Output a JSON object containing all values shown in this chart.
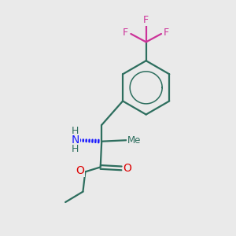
{
  "background_color": "#eaeaea",
  "bond_color": "#2d6e5e",
  "N_color": "#1a1aff",
  "O_color": "#dd0000",
  "F_color": "#cc3399",
  "H_color": "#2d6e5e",
  "figsize": [
    3.0,
    3.0
  ],
  "dpi": 100,
  "xlim": [
    0,
    10
  ],
  "ylim": [
    0,
    10
  ]
}
